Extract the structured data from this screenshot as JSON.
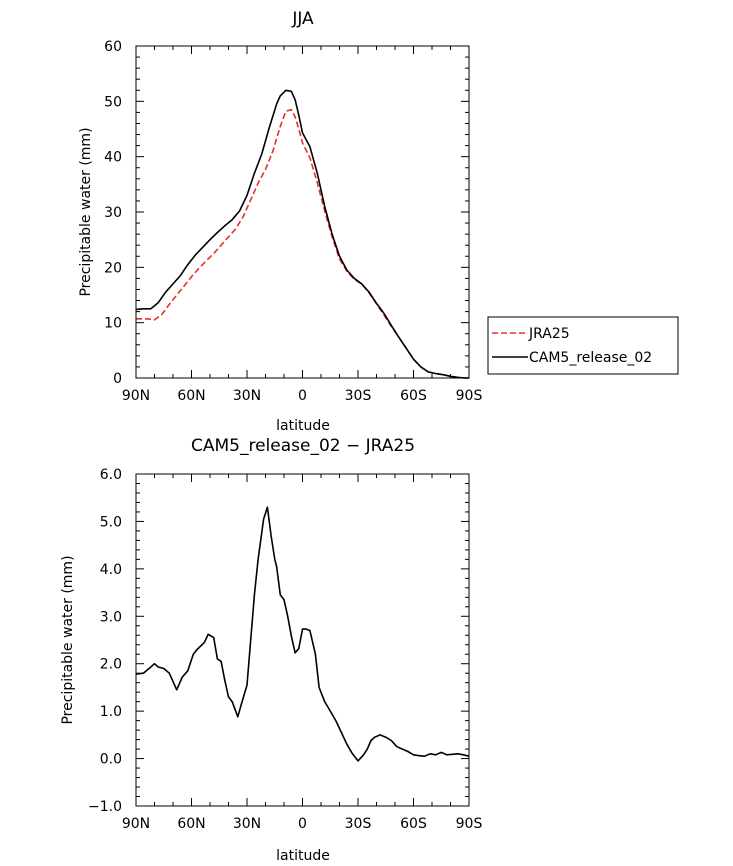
{
  "chart_data": [
    {
      "type": "line",
      "title": "JJA",
      "xlabel": "latitude",
      "ylabel": "Precipitable water (mm)",
      "xlim": [
        -90,
        90
      ],
      "ylim": [
        0,
        60
      ],
      "x_ticks": [
        -90,
        -60,
        -30,
        0,
        30,
        60,
        90
      ],
      "x_tick_labels": [
        "90N",
        "60N",
        "30N",
        "0",
        "30S",
        "60S",
        "90S"
      ],
      "y_ticks": [
        0,
        10,
        20,
        30,
        40,
        50,
        60
      ],
      "y_tick_labels": [
        "0",
        "10",
        "20",
        "30",
        "40",
        "50",
        "60"
      ],
      "legend": [
        "JRA25",
        "CAM5_release_02"
      ],
      "series": [
        {
          "name": "JRA25",
          "style": "dashed",
          "color": "#e8302a",
          "x": [
            -90,
            -84,
            -80,
            -76,
            -72,
            -68,
            -64,
            -60,
            -56,
            -52,
            -48,
            -44,
            -40,
            -36,
            -32,
            -28,
            -24,
            -20,
            -16,
            -12,
            -9,
            -6,
            -4,
            -2,
            0,
            4,
            8,
            12,
            16,
            20,
            24,
            28,
            32,
            36,
            40,
            44,
            48,
            52,
            56,
            60,
            64,
            68,
            72,
            76,
            80,
            84,
            88,
            90
          ],
          "values": [
            10.7,
            10.7,
            10.5,
            11.5,
            13.3,
            15.0,
            16.6,
            18.3,
            19.8,
            21.2,
            22.5,
            24.0,
            25.5,
            27.0,
            29.2,
            32.2,
            35.2,
            37.7,
            41.0,
            45.5,
            48.2,
            48.5,
            47.2,
            45.0,
            42.5,
            39.8,
            35.3,
            30.2,
            25.5,
            21.5,
            19.3,
            17.8,
            17.0,
            15.4,
            13.4,
            11.4,
            9.3,
            7.4,
            5.4,
            3.4,
            2.0,
            1.1,
            0.8,
            0.6,
            0.3,
            0.1,
            0.0,
            0.0
          ]
        },
        {
          "name": "CAM5_release_02",
          "style": "solid",
          "color": "#000000",
          "x": [
            -90,
            -86,
            -82,
            -78,
            -74,
            -70,
            -66,
            -62,
            -58,
            -54,
            -50,
            -46,
            -42,
            -38,
            -34,
            -30,
            -26,
            -22,
            -18,
            -14,
            -12,
            -9,
            -6,
            -4,
            -2,
            0,
            4,
            8,
            12,
            16,
            20,
            24,
            28,
            32,
            36,
            40,
            44,
            48,
            52,
            56,
            60,
            64,
            68,
            72,
            76,
            80,
            84,
            88,
            90
          ],
          "values": [
            12.4,
            12.5,
            12.5,
            13.6,
            15.5,
            17.0,
            18.5,
            20.5,
            22.2,
            23.6,
            25.0,
            26.3,
            27.5,
            28.6,
            30.2,
            33.0,
            37.0,
            40.5,
            45.2,
            49.5,
            51.0,
            52.0,
            51.8,
            50.3,
            47.5,
            44.3,
            41.8,
            37.0,
            31.0,
            26.0,
            22.0,
            19.5,
            18.0,
            17.0,
            15.5,
            13.5,
            11.7,
            9.5,
            7.4,
            5.4,
            3.4,
            2.0,
            1.1,
            0.8,
            0.6,
            0.3,
            0.1,
            0.0,
            0.0
          ]
        }
      ]
    },
    {
      "type": "line",
      "title": "CAM5_release_02 − JRA25",
      "xlabel": "latitude",
      "ylabel": "Precipitable water (mm)",
      "xlim": [
        -90,
        90
      ],
      "ylim": [
        -1.0,
        6.0
      ],
      "x_ticks": [
        -90,
        -60,
        -30,
        0,
        30,
        60,
        90
      ],
      "x_tick_labels": [
        "90N",
        "60N",
        "30N",
        "0",
        "30S",
        "60S",
        "90S"
      ],
      "y_ticks": [
        -1,
        0,
        1,
        2,
        3,
        4,
        5,
        6
      ],
      "y_tick_labels": [
        "−1.0",
        "0.0",
        "1.0",
        "2.0",
        "3.0",
        "4.0",
        "5.0",
        "6.0"
      ],
      "series": [
        {
          "name": "CAM5_release_02 − JRA25",
          "style": "solid",
          "color": "#000000",
          "x": [
            -90,
            -86,
            -82,
            -80,
            -78,
            -75,
            -72,
            -68,
            -65,
            -62,
            -59,
            -57,
            -53,
            -51,
            -48,
            -46,
            -44,
            -42,
            -40,
            -38,
            -35,
            -33,
            -30,
            -28,
            -26,
            -24,
            -21,
            -19,
            -17,
            -15,
            -14,
            -12,
            -10,
            -8,
            -6,
            -4,
            -2,
            0,
            2,
            4,
            7,
            9,
            12,
            15,
            18,
            21,
            24,
            27,
            30,
            33,
            35,
            37,
            39,
            42,
            45,
            48,
            51,
            54,
            57,
            60,
            63,
            66,
            69,
            72,
            75,
            78,
            81,
            84,
            87,
            90
          ],
          "values": [
            1.78,
            1.8,
            1.93,
            2.0,
            1.93,
            1.9,
            1.8,
            1.45,
            1.72,
            1.85,
            2.2,
            2.3,
            2.45,
            2.62,
            2.55,
            2.1,
            2.05,
            1.65,
            1.3,
            1.2,
            0.88,
            1.15,
            1.55,
            2.5,
            3.45,
            4.2,
            5.05,
            5.3,
            4.7,
            4.2,
            4.05,
            3.45,
            3.35,
            3.0,
            2.58,
            2.23,
            2.32,
            2.73,
            2.73,
            2.7,
            2.2,
            1.5,
            1.2,
            1.0,
            0.8,
            0.55,
            0.3,
            0.1,
            -0.05,
            0.08,
            0.2,
            0.38,
            0.45,
            0.5,
            0.45,
            0.38,
            0.25,
            0.2,
            0.15,
            0.08,
            0.06,
            0.05,
            0.1,
            0.08,
            0.13,
            0.08,
            0.09,
            0.1,
            0.08,
            0.05
          ]
        }
      ]
    }
  ]
}
